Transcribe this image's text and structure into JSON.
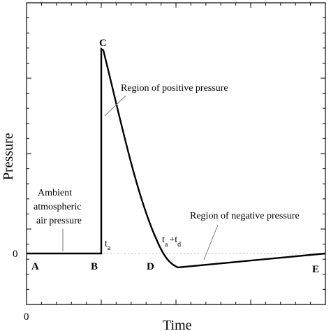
{
  "axes": {
    "x_label": "Time",
    "y_label": "Pressure",
    "x_origin_label": "0",
    "y_zero_label": "0"
  },
  "points": {
    "a": "A",
    "b": "B",
    "c": "C",
    "d": "D",
    "e": "E"
  },
  "annotations": {
    "ambient_line1": "Ambient",
    "ambient_line2": "atmospheric",
    "ambient_line3": "air pressure",
    "positive_region": "Region of positive pressure",
    "negative_region": "Region of negative pressure",
    "ta_base": "t",
    "ta_sub": "a",
    "tatd_t1": "t",
    "tatd_sub1": "a",
    "tatd_plus": "+t",
    "tatd_sub2": "d"
  },
  "colors": {
    "curve": "#000000",
    "axis": "#000000",
    "zero_line": "#bdbdbd"
  }
}
